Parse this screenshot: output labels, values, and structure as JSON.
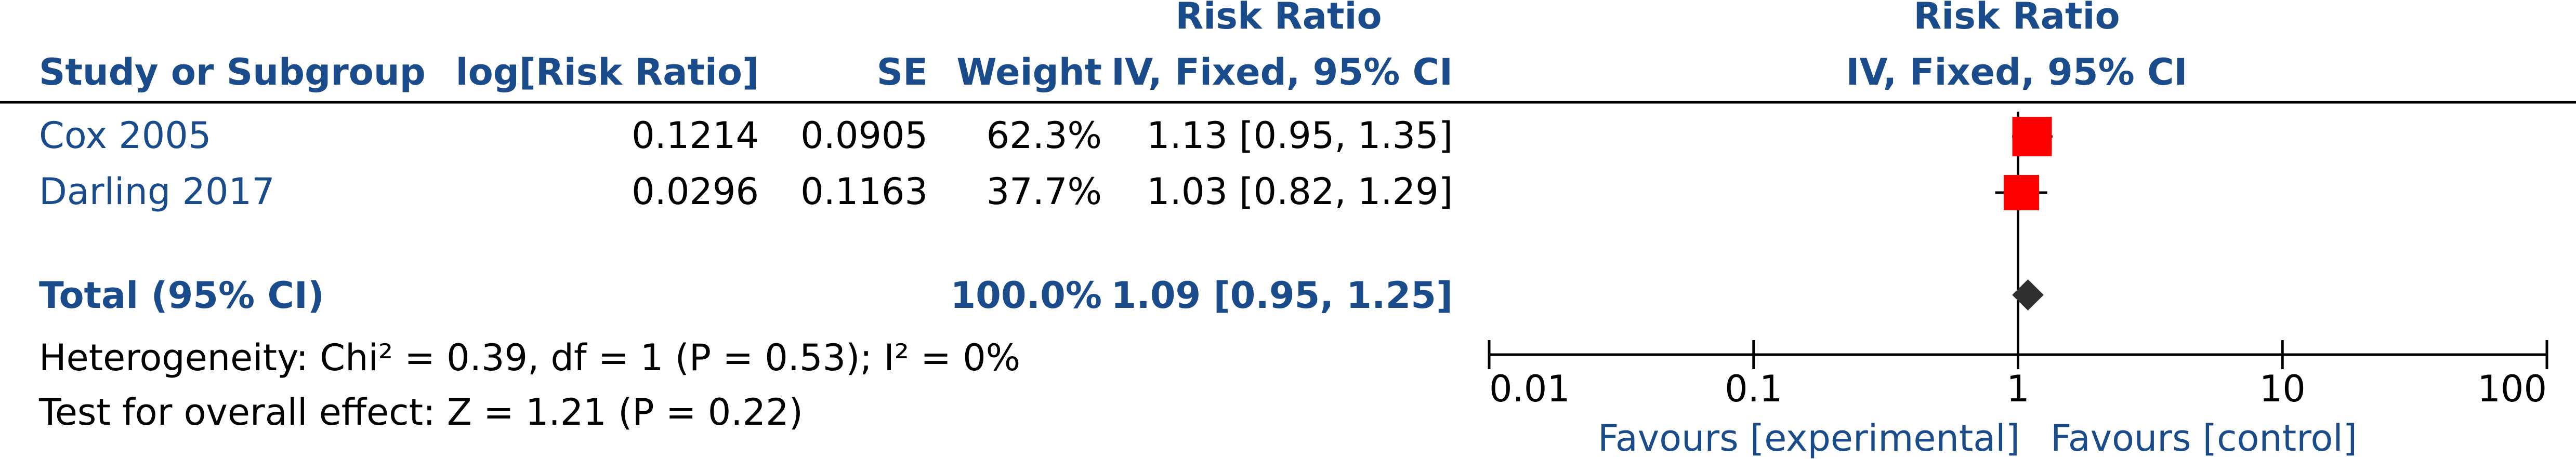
{
  "header": {
    "rr_title_left": "Risk Ratio",
    "rr_title_right": "Risk Ratio",
    "col_study": "Study or Subgroup",
    "col_log": "log[Risk Ratio]",
    "col_se": "SE",
    "col_weight": "Weight",
    "col_ci": "IV, Fixed, 95% CI",
    "col_plot_method": "IV, Fixed, 95% CI"
  },
  "studies": [
    {
      "name": "Cox 2005",
      "log_rr": "0.1214",
      "se": "0.0905",
      "weight": "62.3%",
      "ci_text": "1.13 [0.95, 1.35]"
    },
    {
      "name": "Darling 2017",
      "log_rr": "0.0296",
      "se": "0.1163",
      "weight": "37.7%",
      "ci_text": "1.03 [0.82, 1.29]"
    }
  ],
  "total": {
    "label": "Total (95% CI)",
    "weight": "100.0%",
    "ci_text": "1.09 [0.95, 1.25]"
  },
  "footer": {
    "heterogeneity": "Heterogeneity: Chi² = 0.39, df = 1 (P = 0.53); I² = 0%",
    "overall": "Test for overall effect: Z = 1.21 (P = 0.22)",
    "favours_left": "Favours [experimental]",
    "favours_right": "Favours [control]"
  },
  "colors": {
    "header_text": "#1a4b8a",
    "study_marker": "#ff0000",
    "diamond": "#2f2f2f",
    "axis": "#000000"
  },
  "chart_data": {
    "type": "scatter",
    "subtype": "forest-plot",
    "x_scale": "log",
    "xlim": [
      0.01,
      100
    ],
    "x_ticks": [
      0.01,
      0.1,
      1,
      10,
      100
    ],
    "x_tick_labels": [
      "0.01",
      "0.1",
      "1",
      "10",
      "100"
    ],
    "reference_line": 1,
    "points": [
      {
        "study": "Cox 2005",
        "rr": 1.13,
        "lower": 0.95,
        "upper": 1.35,
        "weight": 62.3
      },
      {
        "study": "Darling 2017",
        "rr": 1.03,
        "lower": 0.82,
        "upper": 1.29,
        "weight": 37.7
      }
    ],
    "pooled": {
      "rr": 1.09,
      "lower": 0.95,
      "upper": 1.25
    }
  }
}
